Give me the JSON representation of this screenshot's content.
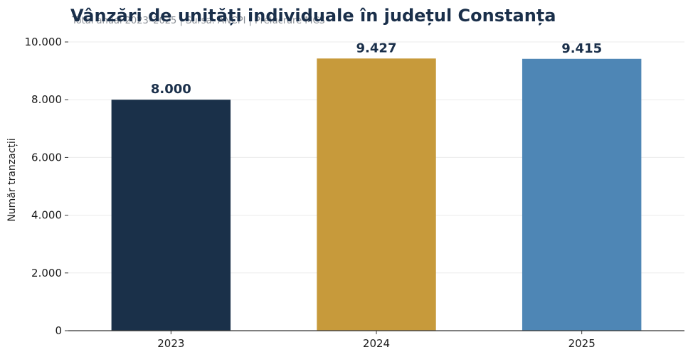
{
  "chart_data": {
    "type": "bar",
    "title": "Vânzări de unități individuale în județul Constanța",
    "subtitle": "Total anual 2023–2025 | Sursa: ANCPI | Prelucrare MCS",
    "ylabel": "Număr tranzacții",
    "xlabel": "",
    "categories": [
      "2023",
      "2024",
      "2025"
    ],
    "values": [
      8000,
      9427,
      9415
    ],
    "value_labels": [
      "8.000",
      "9.427",
      "9.415"
    ],
    "colors": [
      "#1a3049",
      "#c79a3b",
      "#4e86b5"
    ],
    "ylim": [
      0,
      10000
    ],
    "yticks": [
      0,
      2000,
      4000,
      6000,
      8000,
      10000
    ],
    "ytick_labels": [
      "0",
      "2.000",
      "4.000",
      "6.000",
      "8.000",
      "10.000"
    ],
    "grid": true,
    "legend": "none"
  }
}
